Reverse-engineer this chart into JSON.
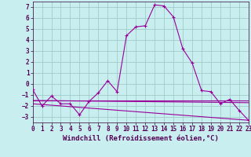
{
  "xlabel": "Windchill (Refroidissement éolien,°C)",
  "background_color": "#c8eef0",
  "grid_color": "#a0ccc8",
  "line_color": "#990099",
  "xlim": [
    0,
    23
  ],
  "ylim": [
    -3.5,
    7.5
  ],
  "yticks": [
    -3,
    -2,
    -1,
    0,
    1,
    2,
    3,
    4,
    5,
    6,
    7
  ],
  "xticks": [
    0,
    1,
    2,
    3,
    4,
    5,
    6,
    7,
    8,
    9,
    10,
    11,
    12,
    13,
    14,
    15,
    16,
    17,
    18,
    19,
    20,
    21,
    22,
    23
  ],
  "main_curve": {
    "x": [
      0,
      1,
      2,
      3,
      4,
      5,
      6,
      7,
      8,
      9,
      10,
      11,
      12,
      13,
      14,
      15,
      16,
      17,
      18,
      19,
      20,
      21,
      22,
      23
    ],
    "y": [
      -0.5,
      -2.0,
      -1.1,
      -1.8,
      -1.8,
      -2.8,
      -1.6,
      -0.8,
      0.3,
      -0.7,
      4.4,
      5.2,
      5.3,
      7.2,
      7.1,
      6.1,
      3.2,
      1.9,
      -0.6,
      -0.7,
      -1.8,
      -1.4,
      -2.4,
      -3.3
    ]
  },
  "ref_lines": [
    {
      "x": [
        0,
        23
      ],
      "y": [
        -1.5,
        -1.5
      ]
    },
    {
      "x": [
        0,
        23
      ],
      "y": [
        -1.5,
        -1.7
      ]
    },
    {
      "x": [
        0,
        23
      ],
      "y": [
        -1.8,
        -3.3
      ]
    }
  ],
  "tick_fontsize": 5.5,
  "label_fontsize": 6.5
}
